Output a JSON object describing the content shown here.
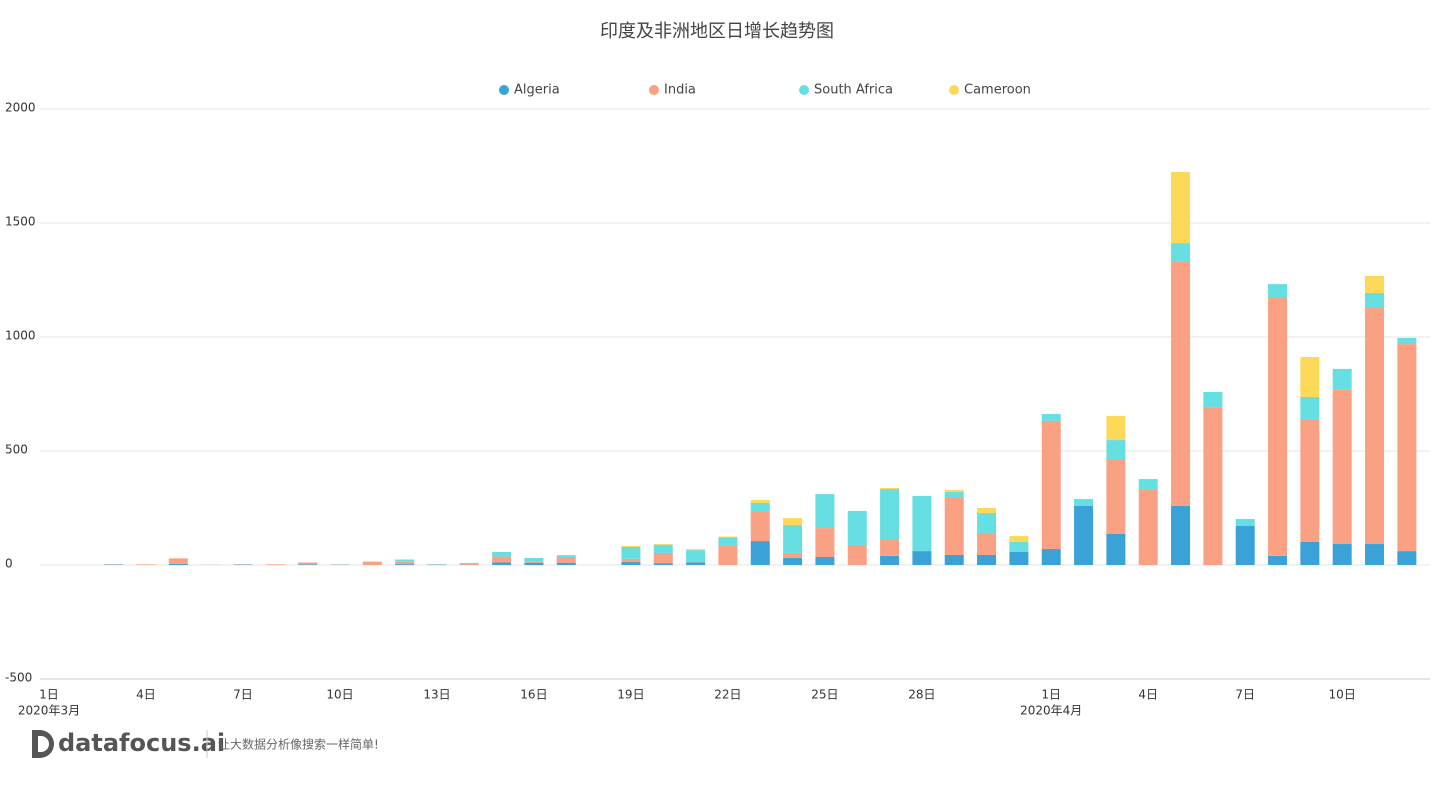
{
  "chart_data": {
    "type": "stacked_bar",
    "title": "印度及非洲地区日增长趋势图",
    "categories": [
      "1日",
      null,
      null,
      "4日",
      null,
      null,
      "7日",
      null,
      null,
      "10日",
      null,
      null,
      "13日",
      null,
      null,
      "16日",
      null,
      null,
      "19日",
      null,
      null,
      "22日",
      null,
      null,
      "25日",
      null,
      null,
      "28日",
      null,
      null,
      null,
      "1日",
      null,
      null,
      "4日",
      null,
      null,
      "7日",
      null,
      null,
      "10日",
      null,
      null
    ],
    "x_month_labels": [
      "2020年3月",
      null,
      null,
      null,
      null,
      null,
      null,
      null,
      null,
      null,
      null,
      null,
      null,
      null,
      null,
      null,
      null,
      null,
      null,
      null,
      null,
      null,
      null,
      null,
      null,
      null,
      null,
      null,
      null,
      null,
      null,
      "2020年4月",
      null,
      null,
      null,
      null,
      null,
      null,
      null,
      null,
      null,
      null,
      null
    ],
    "series": [
      {
        "name": "Algeria",
        "color": "#3ba2d8",
        "values": [
          0,
          0,
          2,
          0,
          5,
          0,
          2,
          0,
          3,
          1,
          0,
          4,
          1,
          1,
          11,
          10,
          10,
          0,
          13,
          8,
          12,
          0,
          105,
          31,
          35,
          0,
          40,
          61,
          44,
          44,
          57,
          70,
          259,
          136,
          0,
          259,
          0,
          171,
          40,
          101,
          92,
          92,
          61
        ]
      },
      {
        "name": "India",
        "color": "#fba183",
        "values": [
          0,
          0,
          1,
          3,
          24,
          1,
          1,
          3,
          8,
          1,
          15,
          10,
          1,
          6,
          26,
          6,
          25,
          0,
          14,
          45,
          3,
          86,
          132,
          22,
          127,
          88,
          74,
          0,
          250,
          92,
          0,
          562,
          0,
          329,
          333,
          1074,
          689,
          0,
          1131,
          539,
          676,
          1035,
          908
        ]
      },
      {
        "name": "South Africa",
        "color": "#66dfe3",
        "values": [
          0,
          0,
          0,
          0,
          0,
          0,
          0,
          0,
          0,
          1,
          0,
          10,
          2,
          2,
          20,
          15,
          8,
          0,
          52,
          36,
          50,
          36,
          35,
          122,
          149,
          149,
          219,
          242,
          26,
          92,
          44,
          30,
          30,
          83,
          44,
          79,
          70,
          31,
          61,
          97,
          92,
          66,
          27
        ]
      },
      {
        "name": "Cameroon",
        "color": "#fdd95a",
        "values": [
          0,
          0,
          0,
          0,
          0,
          0,
          0,
          0,
          0,
          0,
          0,
          0,
          0,
          0,
          0,
          0,
          0,
          0,
          5,
          3,
          5,
          3,
          13,
          31,
          0,
          0,
          5,
          0,
          9,
          22,
          26,
          0,
          0,
          106,
          0,
          312,
          0,
          0,
          0,
          175,
          0,
          75,
          0
        ]
      }
    ],
    "ylim": [
      -500,
      2000
    ],
    "yticks": [
      -500,
      0,
      500,
      1000,
      1500,
      2000
    ],
    "grid": true,
    "legend": "top"
  },
  "branding": {
    "logo": "datafocus.ai",
    "slogan": "让大数据分析像搜索一样简单!"
  }
}
